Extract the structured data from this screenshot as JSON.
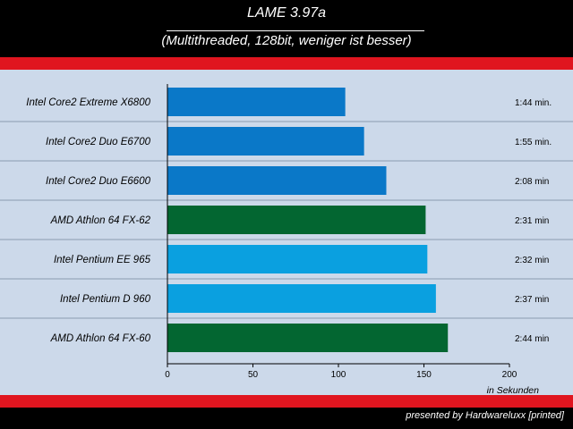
{
  "header": {
    "title": "LAME 3.97a",
    "subtitle": "(Multithreaded, 128bit, weniger ist besser)"
  },
  "footer": {
    "credit": "presented by Hardwareluxx [printed]"
  },
  "colors": {
    "intel": "#0a78c8",
    "intel_light": "#0aa0e0",
    "amd": "#036631",
    "band": "#e0151f"
  },
  "chart_data": {
    "type": "bar",
    "orientation": "horizontal",
    "categories": [
      "Intel Core2 Extreme X6800",
      "Intel Core2 Duo E6700",
      "Intel Core2 Duo E6600",
      "AMD Athlon 64 FX-62",
      "Intel Pentium EE 965",
      "Intel Pentium D 960",
      "AMD Athlon 64 FX-60"
    ],
    "values": [
      104,
      115,
      128,
      151,
      152,
      157,
      164
    ],
    "value_labels": [
      "1:44 min.",
      "1:55 min.",
      "2:08 min",
      "2:31 min",
      "2:32 min",
      "2:37 min",
      "2:44 min"
    ],
    "bar_colors": [
      "#0a78c8",
      "#0a78c8",
      "#0a78c8",
      "#036631",
      "#0aa0e0",
      "#0aa0e0",
      "#036631"
    ],
    "xlim": [
      0,
      200
    ],
    "xticks": [
      0,
      50,
      100,
      150,
      200
    ],
    "xlabel": "in Sekunden",
    "title": "LAME 3.97a",
    "subtitle": "(Multithreaded, 128bit, weniger ist besser)"
  }
}
